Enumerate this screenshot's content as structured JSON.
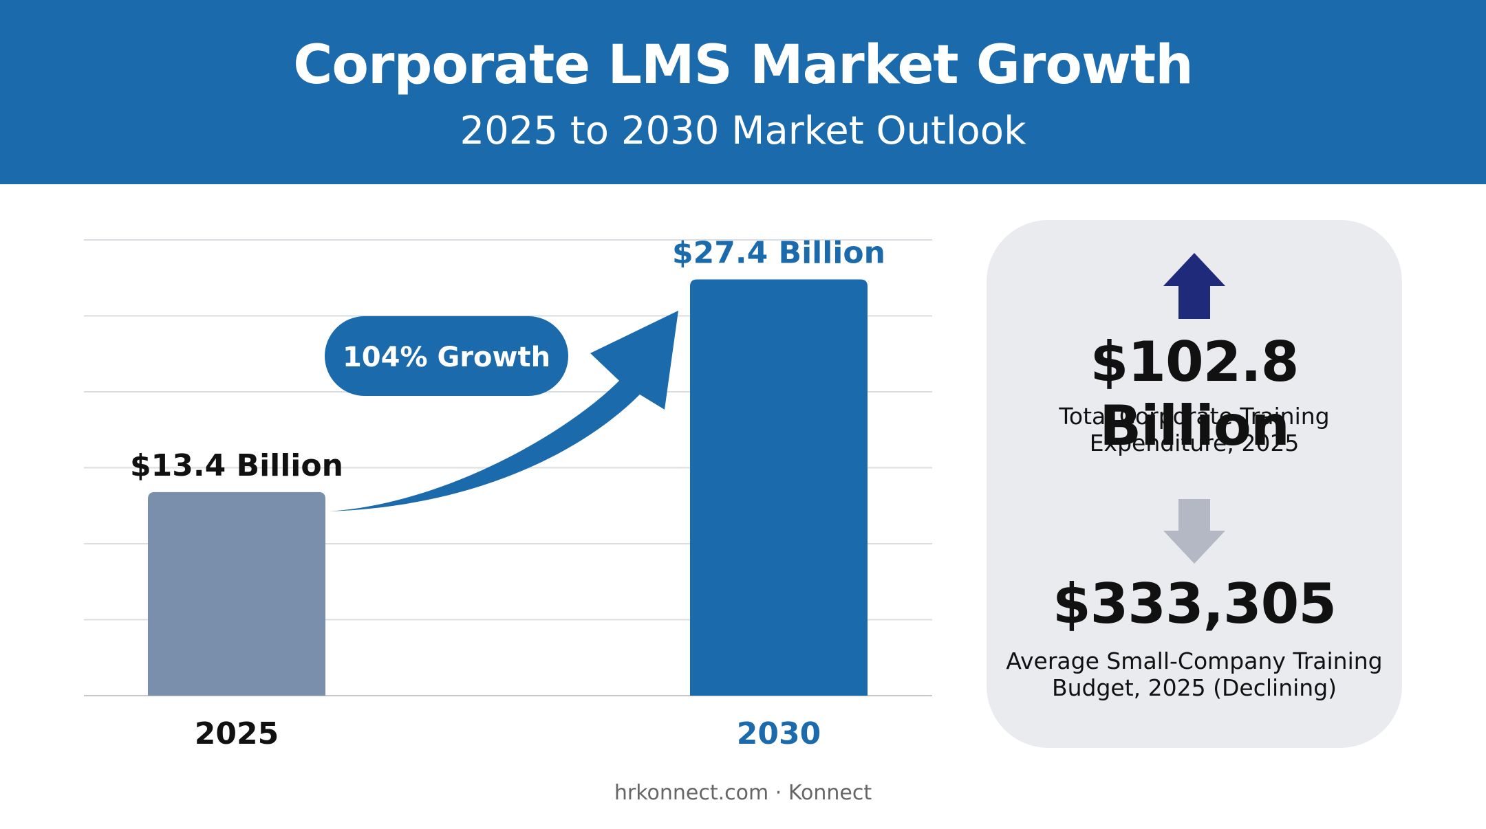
{
  "header": {
    "title": "Corporate LMS Market Growth",
    "subtitle": "2025 to 2030 Market Outlook"
  },
  "chart_data": {
    "type": "bar",
    "title": "Corporate LMS Market Growth",
    "subtitle": "2025 to 2030 Market Outlook",
    "categories": [
      "2025",
      "2030"
    ],
    "values": [
      13.4,
      27.4
    ],
    "data_labels": [
      "$13.4 Billion",
      "$27.4 Billion"
    ],
    "unit": "Billion USD",
    "ylim": [
      0,
      30
    ],
    "grid": true,
    "xlabel": "",
    "ylabel": "",
    "annotation": "104% Growth",
    "bar_colors": [
      "#7a8fab",
      "#1a6aac"
    ],
    "label_colors": [
      "#111111",
      "#1a6aac"
    ],
    "accent_color": "#1a6aac"
  },
  "stats_panel": {
    "stats": [
      {
        "value": "$102.8 Billion",
        "label": "Total Corporate Training Expenditure, 2025",
        "trend_icon": "arrow-up-icon",
        "trend_color": "#1f2a7a"
      },
      {
        "value": "$333,305",
        "label": "Average Small-Company Training Budget, 2025 (Declining)",
        "trend_icon": "arrow-down-icon",
        "trend_color": "#b3b8c4"
      }
    ]
  },
  "footer": {
    "source": "hrkonnect.com · Konnect"
  }
}
